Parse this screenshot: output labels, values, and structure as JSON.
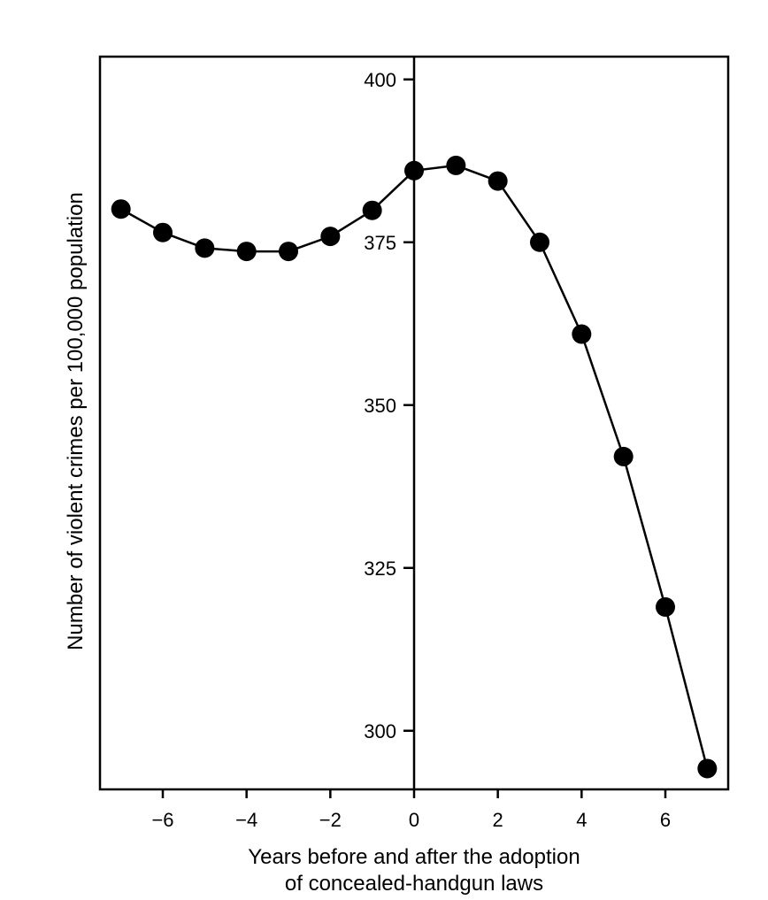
{
  "chart_data": {
    "type": "line",
    "xlabel_line1": "Years before and after the adoption",
    "xlabel_line2": "of concealed-handgun laws",
    "ylabel": "Number of violent crimes per 100,000 population",
    "xlim": [
      -7.5,
      7.5
    ],
    "ylim": [
      291,
      403.5
    ],
    "x_ticks": [
      -6,
      -4,
      -2,
      0,
      2,
      4,
      6
    ],
    "x_tick_labels": [
      "−6",
      "−4",
      "−2",
      "0",
      "2",
      "4",
      "6"
    ],
    "y_ticks": [
      300,
      325,
      350,
      375,
      400
    ],
    "y_tick_labels": [
      "300",
      "325",
      "350",
      "375",
      "400"
    ],
    "grid": false,
    "legend": "none",
    "marker": "filled-circle",
    "color": "#000000",
    "x": [
      -7,
      -6,
      -5,
      -4,
      -3,
      -2,
      -1,
      0,
      1,
      2,
      3,
      4,
      5,
      6,
      7
    ],
    "y": [
      380.1,
      376.5,
      374.1,
      373.6,
      373.6,
      375.9,
      379.9,
      386.0,
      386.8,
      384.4,
      375.0,
      360.9,
      342.1,
      319.0,
      294.2
    ]
  }
}
